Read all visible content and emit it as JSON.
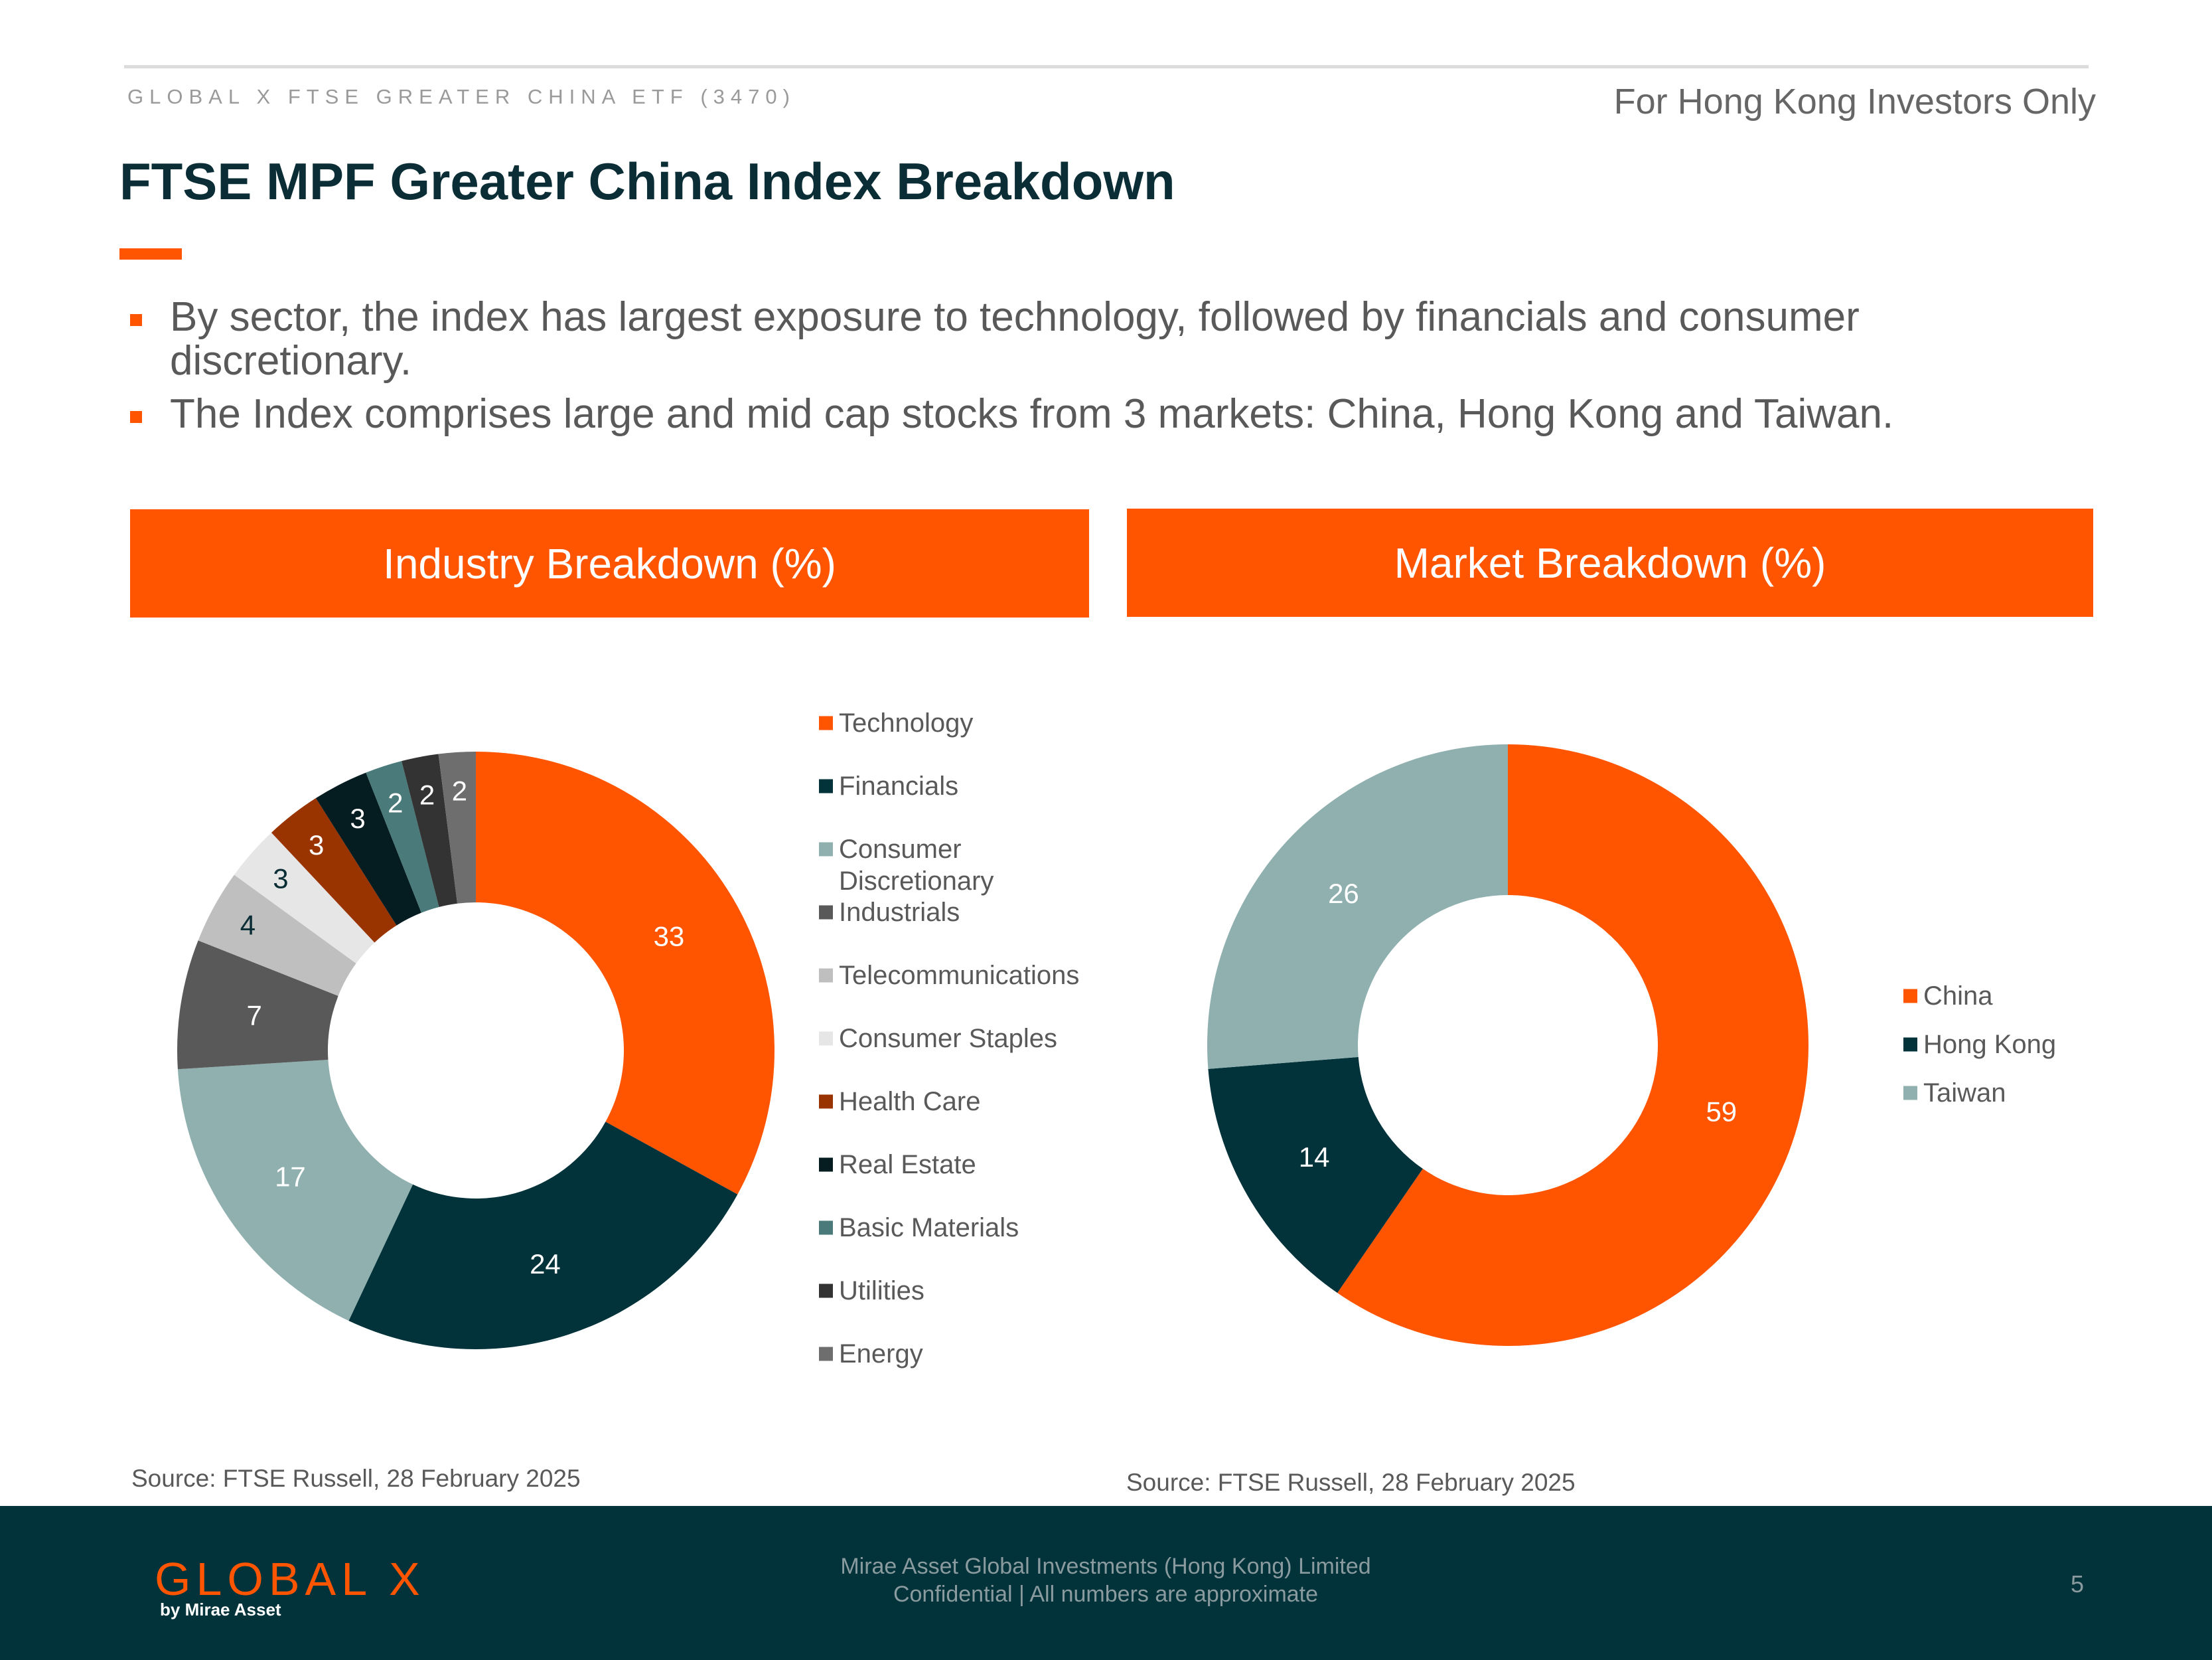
{
  "header": {
    "fund_name": "GLOBAL X FTSE GREATER CHINA ETF (3470)",
    "investor_note": "For Hong Kong Investors Only",
    "title": "FTSE MPF Greater China Index Breakdown"
  },
  "bullets": [
    "By sector, the index has largest exposure to technology, followed by financials and consumer discretionary.",
    "The Index comprises large and mid cap stocks from 3 markets: China, Hong Kong and Taiwan."
  ],
  "panels": {
    "industry_title": "Industry Breakdown (%)",
    "market_title": "Market Breakdown (%)",
    "industry_source": "Source: FTSE Russell, 28 February 2025",
    "market_source": "Source: FTSE Russell, 28 February 2025"
  },
  "chart_data": [
    {
      "type": "pie",
      "style": "donut",
      "title": "Industry Breakdown (%)",
      "legend_position": "right",
      "categories": [
        "Technology",
        "Financials",
        "Consumer Discretionary",
        "Industrials",
        "Telecommunications",
        "Consumer Staples",
        "Health Care",
        "Real Estate",
        "Basic Materials",
        "Utilities",
        "Energy"
      ],
      "legend_labels": [
        "Technology",
        "Financials",
        "Consumer\nDiscretionary",
        "Industrials",
        "Telecommunications",
        "Consumer Staples",
        "Health Care",
        "Real Estate",
        "Basic Materials",
        "Utilities",
        "Energy"
      ],
      "values": [
        33,
        24,
        17,
        7,
        4,
        3,
        3,
        3,
        2,
        2,
        2
      ],
      "colors": [
        "#ff5500",
        "#02333a",
        "#8fb0af",
        "#595959",
        "#bfbfbf",
        "#e6e6e6",
        "#993300",
        "#051c20",
        "#4a7a7a",
        "#333333",
        "#6e6e6e"
      ],
      "label_colors": [
        "#ffffff",
        "#ffffff",
        "#ffffff",
        "#ffffff",
        "#0b2e36",
        "#0b2e36",
        "#ffffff",
        "#ffffff",
        "#ffffff",
        "#ffffff",
        "#ffffff"
      ]
    },
    {
      "type": "pie",
      "style": "donut",
      "title": "Market Breakdown (%)",
      "legend_position": "right",
      "categories": [
        "China",
        "Hong Kong",
        "Taiwan"
      ],
      "legend_labels": [
        "China",
        "Hong Kong",
        "Taiwan"
      ],
      "values": [
        59,
        14,
        26
      ],
      "colors": [
        "#ff5500",
        "#02333a",
        "#8fb0af"
      ],
      "label_colors": [
        "#ffffff",
        "#ffffff",
        "#ffffff"
      ]
    }
  ],
  "footer": {
    "logo": "GLOBAL X",
    "logo_sub": "by Mirae Asset",
    "company": "Mirae Asset Global Investments (Hong Kong) Limited",
    "confidential": "Confidential | All numbers are approximate",
    "page_number": "5"
  }
}
